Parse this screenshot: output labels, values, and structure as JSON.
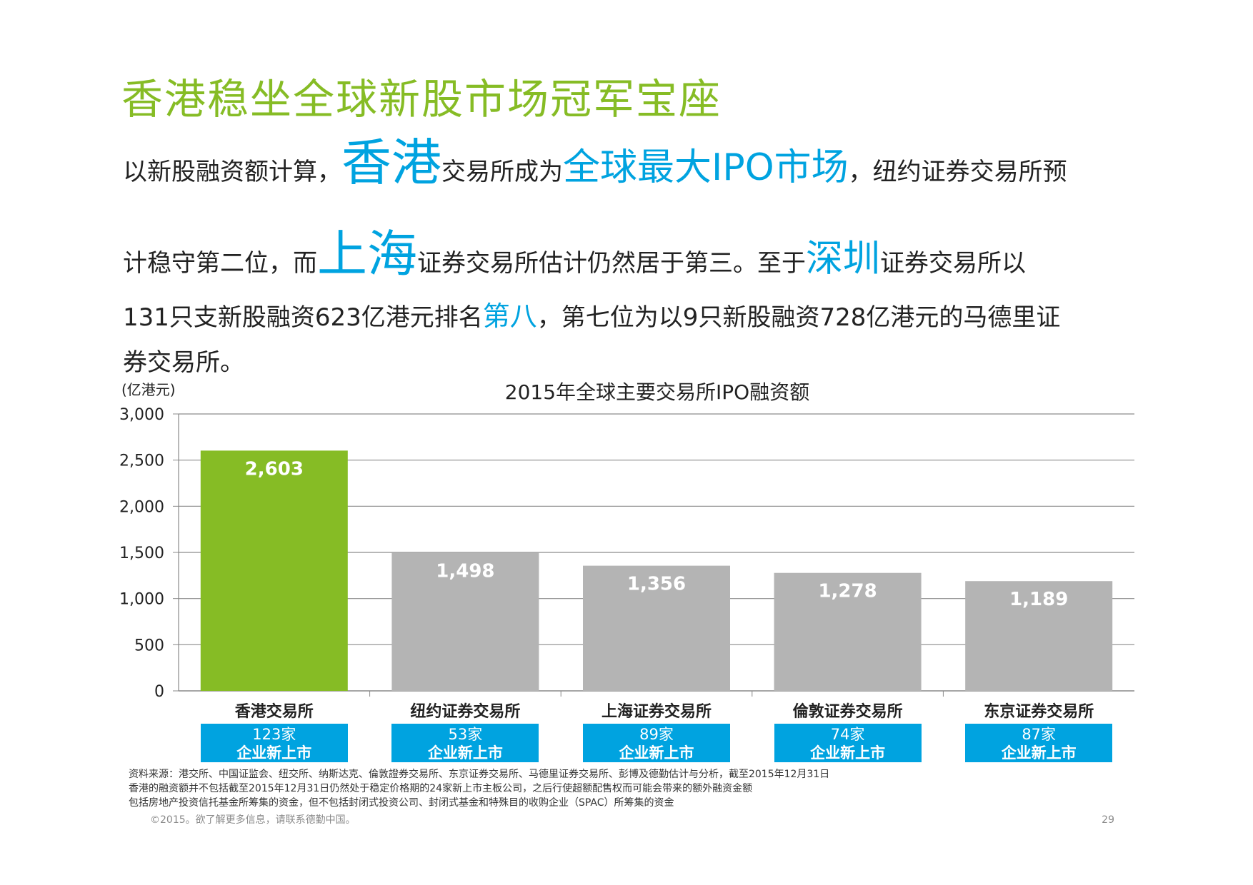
{
  "title": "香港稳坐全球新股市场冠军宝座",
  "paragraph": {
    "line1": {
      "a": "以新股融资额计算，",
      "b": "香港",
      "c": "交易所成为",
      "d": "全球最大IPO市场",
      "e": "，纽约证券交易所预"
    },
    "line2": {
      "a": "计稳守第二位，而",
      "b": "上海",
      "c": "证券交易所估计仍然居于第三。至于",
      "d": "深圳",
      "e": "证券交易所以"
    },
    "line3": {
      "a": "131只支新股融资623亿港元排名",
      "b": "第八",
      "c": "，第七位为以9只新股融资728亿港元的马德里证"
    },
    "line4": {
      "a": "券交易所。"
    }
  },
  "chart_data": {
    "type": "bar",
    "title": "2015年全球主要交易所IPO融资额",
    "ylabel": "(亿港元)",
    "ylim": [
      0,
      3000
    ],
    "yticks": [
      "0",
      "500",
      "1,000",
      "1,500",
      "2,000",
      "2,500",
      "3,000"
    ],
    "ytick_values": [
      0,
      500,
      1000,
      1500,
      2000,
      2500,
      3000
    ],
    "grid": true,
    "categories": [
      "香港交易所",
      "纽约证券交易所",
      "上海证券交易所",
      "倫敦证券交易所",
      "东京证券交易所"
    ],
    "values": [
      2603,
      1498,
      1356,
      1278,
      1189
    ],
    "value_labels": [
      "2,603",
      "1,498",
      "1,356",
      "1,278",
      "1,189"
    ],
    "bar_colors": [
      "#86bc25",
      "#b4b4b4",
      "#b4b4b4",
      "#b4b4b4",
      "#b4b4b4"
    ],
    "badges": [
      {
        "count": "123家",
        "text": "企业新上市"
      },
      {
        "count": "53家",
        "text": "企业新上市"
      },
      {
        "count": "89家",
        "text": "企业新上市"
      },
      {
        "count": "74家",
        "text": "企业新上市"
      },
      {
        "count": "87家",
        "text": "企业新上市"
      }
    ]
  },
  "footnotes": [
    "资料来源：港交所、中国证监会、纽交所、纳斯达克、倫敦證券交易所、东京证券交易所、马德里证券交易所、彭博及德勤估计与分析，截至2015年12月31日",
    "香港的融资额并不包括截至2015年12月31日仍然处于稳定价格期的24家新上市主板公司，之后行使超额配售权而可能会带来的额外融资金额",
    "包括房地产投资信托基金所筹集的资金，但不包括封闭式投资公司、封闭式基金和特殊目的收购企业（SPAC）所筹集的资金"
  ],
  "copyright": "©2015。欲了解更多信息，请联系德勤中国。",
  "page_number": "29",
  "colors": {
    "green": "#86bc25",
    "blue": "#00a3e0",
    "gray": "#b4b4b4"
  }
}
